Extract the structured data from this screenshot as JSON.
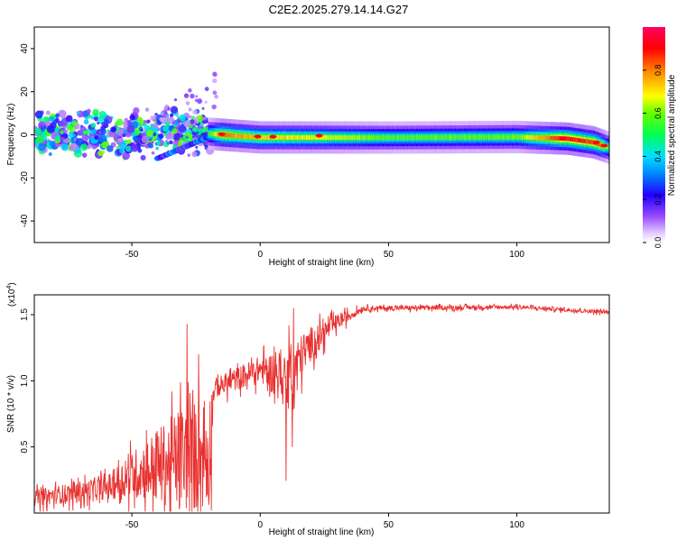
{
  "figure_title": "C2E2.2025.279.14.14.G27",
  "chart_data": [
    {
      "type": "heatmap",
      "title": "",
      "xlabel": "Height of straight line (km)",
      "ylabel": "Frequency (Hz)",
      "xlim": [
        -88,
        136
      ],
      "ylim": [
        -50,
        50
      ],
      "xticks": [
        -50,
        0,
        50,
        100
      ],
      "yticks": [
        -40,
        -20,
        0,
        20,
        40
      ],
      "colorbar": {
        "label": "Normalized spectral amplitude",
        "range": [
          0,
          1
        ],
        "ticks": [
          "0.0",
          "0.2",
          "0.4",
          "0.6",
          "0.8"
        ]
      },
      "main_band": {
        "description_free": true,
        "freq_track": [
          {
            "x": -20,
            "f": 0.5
          },
          {
            "x": 0,
            "f": -1.2
          },
          {
            "x": 50,
            "f": -1.3
          },
          {
            "x": 100,
            "f": -1.0
          },
          {
            "x": 120,
            "f": -1.8
          },
          {
            "x": 130,
            "f": -3.5
          },
          {
            "x": 136,
            "f": -6
          }
        ],
        "amplitude": [
          {
            "x": -20,
            "a": 0.55
          },
          {
            "x": -15,
            "a": 0.85
          },
          {
            "x": 0,
            "a": 0.75
          },
          {
            "x": 25,
            "a": 0.7
          },
          {
            "x": 50,
            "a": 0.6
          },
          {
            "x": 100,
            "a": 0.62
          },
          {
            "x": 118,
            "a": 0.95
          },
          {
            "x": 132,
            "a": 0.9
          },
          {
            "x": 136,
            "a": 0.6
          }
        ]
      },
      "scatter_region": {
        "x_range": [
          -88,
          -18
        ],
        "freq_center": 0,
        "freq_spread": 8
      },
      "branch": {
        "x_start": -40,
        "x_end": -18,
        "f_start": -11,
        "f_end": 0
      }
    },
    {
      "type": "line",
      "title": "",
      "xlabel": "Height of straight line (km)",
      "ylabel": "SNR (10 * v/v)",
      "multiplier_label": "(x10",
      "multiplier_exp": "4",
      "xlim": [
        -88,
        136
      ],
      "ylim": [
        0,
        1.65
      ],
      "xticks": [
        -50,
        0,
        50,
        100
      ],
      "yticks": [
        "0.5",
        "1.0",
        "1.5"
      ],
      "line_color": "#e8312f",
      "envelope": [
        {
          "x": -88,
          "base": 0.12,
          "noise": 0.12
        },
        {
          "x": -60,
          "base": 0.2,
          "noise": 0.18
        },
        {
          "x": -45,
          "base": 0.35,
          "noise": 0.45
        },
        {
          "x": -30,
          "base": 0.45,
          "noise": 0.8
        },
        {
          "x": -20,
          "base": 0.5,
          "noise": 0.9
        },
        {
          "x": -18,
          "base": 0.95,
          "noise": 0.15
        },
        {
          "x": 0,
          "base": 1.1,
          "noise": 0.2
        },
        {
          "x": 10,
          "base": 1.05,
          "noise": 0.45
        },
        {
          "x": 20,
          "base": 1.3,
          "noise": 0.25
        },
        {
          "x": 30,
          "base": 1.45,
          "noise": 0.12
        },
        {
          "x": 40,
          "base": 1.55,
          "noise": 0.04
        },
        {
          "x": 100,
          "base": 1.56,
          "noise": 0.03
        },
        {
          "x": 136,
          "base": 1.52,
          "noise": 0.03
        }
      ],
      "spikes": [
        {
          "x": -28.5,
          "y": 1.43
        },
        {
          "x": 13,
          "y": 1.55
        },
        {
          "x": 12.5,
          "y": 0.5
        },
        {
          "x": -19,
          "y": 0.02
        },
        {
          "x": -24,
          "y": 1.2
        }
      ]
    }
  ]
}
